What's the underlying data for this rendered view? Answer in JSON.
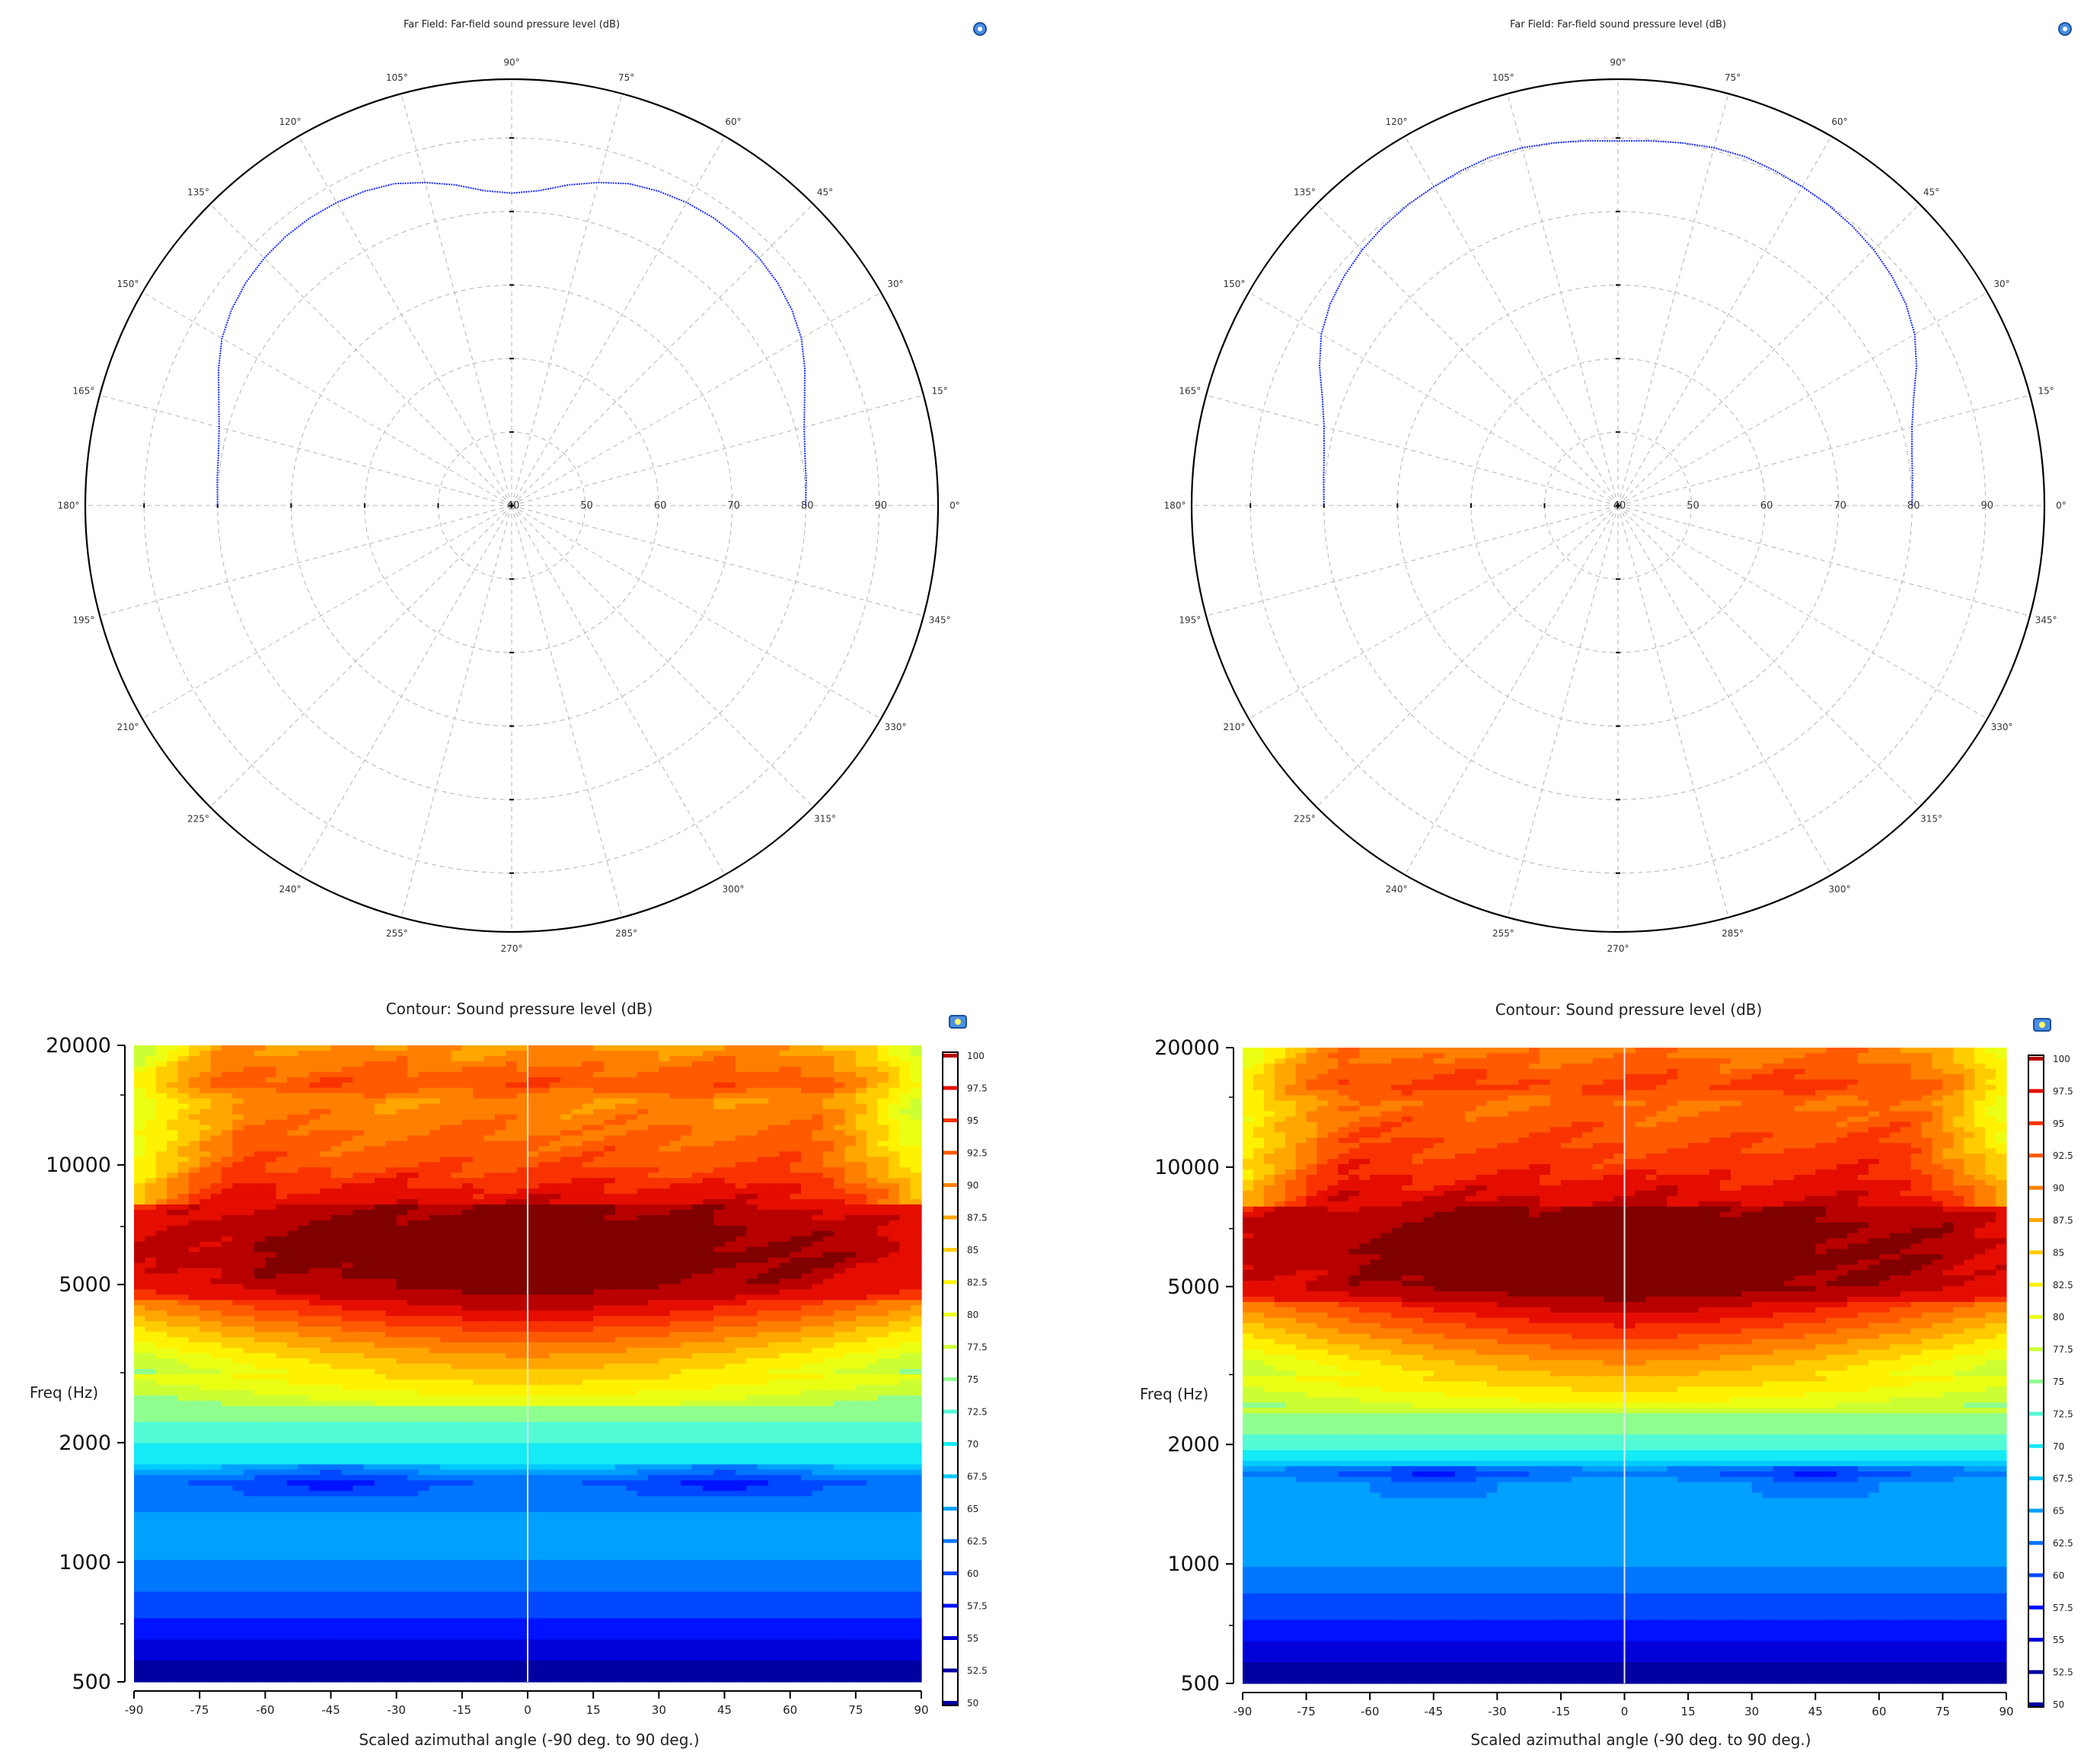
{
  "colors": {
    "polar_line": "#1a2cff",
    "frame": "#000000",
    "grid": "#b4b4b4",
    "sweep_line": "#e6e6e6",
    "contour_stops": [
      "#0000a0",
      "#0000ff",
      "#005aff",
      "#00a0ff",
      "#00e6ff",
      "#66ffcc",
      "#ccff33",
      "#ffff00",
      "#ffbf00",
      "#ff8000",
      "#ff4000",
      "#dd0000",
      "#800000"
    ]
  },
  "charts": {
    "polar_left": {
      "title": "Far Field: Far-field sound pressure level (dB)",
      "icon": "legend-toggle-icon"
    },
    "polar_right": {
      "title": "Far Field: Far-field sound pressure level (dB)",
      "icon": "legend-toggle-icon"
    },
    "contour_left": {
      "title": "Contour: Sound pressure level (dB)",
      "ylabel": "Freq (Hz)",
      "xlabel": "Scaled azimuthal angle (-90 deg. to 90 deg.)",
      "icon": "legend-toggle-icon"
    },
    "contour_right": {
      "title": "Contour: Sound pressure level (dB)",
      "ylabel": "Freq (Hz)",
      "xlabel": "Scaled azimuthal angle (-90 deg. to 90 deg.)",
      "icon": "legend-toggle-icon"
    }
  },
  "chart_data": [
    {
      "type": "line",
      "subtype": "polar",
      "title": "Far Field: Far-field sound pressure level (dB)",
      "angle_ticks": [
        "0°",
        "15°",
        "30°",
        "45°",
        "60°",
        "75°",
        "90°",
        "105°",
        "120°",
        "135°",
        "150°",
        "165°",
        "180°",
        "195°",
        "210°",
        "225°",
        "240°",
        "255°",
        "270°",
        "285°",
        "300°",
        "315°",
        "330°",
        "345°"
      ],
      "radial_ticks": [
        40,
        50,
        60,
        70,
        80,
        90
      ],
      "rlim": [
        40,
        98
      ],
      "grid": true,
      "series": [
        {
          "theta_deg": [
            0,
            5,
            10,
            15,
            20,
            25,
            30,
            35,
            40,
            45,
            50,
            55,
            60,
            65,
            70,
            75,
            80,
            85,
            90,
            95,
            100,
            105,
            110,
            115,
            120,
            125,
            130,
            135,
            140,
            145,
            150,
            155,
            160,
            165,
            170,
            175,
            180
          ],
          "r_db": [
            80.0,
            80.2,
            80.5,
            81.2,
            82.4,
            84.0,
            85.5,
            86.5,
            87.2,
            87.6,
            87.8,
            87.8,
            87.6,
            87.2,
            86.6,
            85.5,
            84.3,
            83.0,
            82.5,
            83.0,
            84.3,
            85.5,
            86.6,
            87.2,
            87.6,
            87.8,
            87.8,
            87.6,
            87.2,
            86.5,
            85.5,
            84.0,
            82.4,
            81.2,
            80.5,
            80.2,
            80.0
          ]
        }
      ]
    },
    {
      "type": "line",
      "subtype": "polar",
      "title": "Far Field: Far-field sound pressure level (dB)",
      "angle_ticks": [
        "0°",
        "15°",
        "30°",
        "45°",
        "60°",
        "75°",
        "90°",
        "105°",
        "120°",
        "135°",
        "150°",
        "165°",
        "180°",
        "195°",
        "210°",
        "225°",
        "240°",
        "255°",
        "270°",
        "285°",
        "300°",
        "315°",
        "330°",
        "345°"
      ],
      "radial_ticks": [
        40,
        50,
        60,
        70,
        80,
        90
      ],
      "rlim": [
        40,
        98
      ],
      "grid": true,
      "series": [
        {
          "theta_deg": [
            0,
            5,
            10,
            15,
            20,
            25,
            30,
            35,
            40,
            45,
            50,
            55,
            60,
            65,
            70,
            75,
            80,
            85,
            90,
            95,
            100,
            105,
            110,
            115,
            120,
            125,
            130,
            135,
            140,
            145,
            150,
            155,
            160,
            165,
            170,
            175,
            180
          ],
          "r_db": [
            80.0,
            80.2,
            80.6,
            81.4,
            82.8,
            84.8,
            86.6,
            87.8,
            88.6,
            89.2,
            89.6,
            89.9,
            90.1,
            90.3,
            90.5,
            90.4,
            90.1,
            89.8,
            89.6,
            89.8,
            90.1,
            90.4,
            90.5,
            90.3,
            90.1,
            89.9,
            89.6,
            89.2,
            88.6,
            87.8,
            86.6,
            84.8,
            82.8,
            81.4,
            80.6,
            80.2,
            80.0
          ]
        }
      ]
    },
    {
      "type": "heatmap",
      "subtype": "contour",
      "title": "Contour: Sound pressure level (dB)",
      "xlabel": "Scaled azimuthal angle (-90 deg. to 90 deg.)",
      "ylabel": "Freq (Hz)",
      "x_ticks": [
        -90,
        -75,
        -60,
        -45,
        -30,
        -15,
        0,
        15,
        30,
        45,
        60,
        75,
        90
      ],
      "y_ticks": [
        500,
        1000,
        2000,
        5000,
        10000,
        20000
      ],
      "y_scale": "log",
      "xlim": [
        -90,
        90
      ],
      "ylim": [
        500,
        20000
      ],
      "levels": [
        50,
        52.5,
        55,
        57.5,
        60,
        62.5,
        65,
        67.5,
        70,
        72.5,
        75,
        77.5,
        80,
        82.5,
        85,
        87.5,
        90,
        92.5,
        95,
        97.5,
        100
      ],
      "level_labels": [
        "100",
        "97.5",
        "95",
        "92.5",
        "90",
        "87.5",
        "85",
        "82.5",
        "80",
        "77.5",
        "75",
        "72.5",
        "70",
        "67.5",
        "65",
        "62.5",
        "60",
        "57.5",
        "55",
        "52.5",
        "50"
      ],
      "profile_freq_hz": [
        500,
        600,
        750,
        900,
        1000,
        1200,
        1400,
        1600,
        1800,
        2000,
        2400,
        2800,
        3300,
        3800,
        4400,
        5000,
        5800,
        7000,
        8500,
        10000,
        12000,
        14500,
        16000,
        20000
      ],
      "profile_level_db": [
        50,
        54,
        58,
        61,
        62.5,
        64,
        62,
        60,
        68,
        70,
        74,
        79,
        84,
        89,
        95,
        98,
        100,
        99,
        96,
        92,
        90,
        88,
        92,
        87
      ],
      "center_shift_db_at": {
        "3800": 6,
        "4400": 4,
        "5000": 2
      },
      "edge_cool_regions": [
        "-90 to -75 deg above 10000 Hz",
        "75 to 90 deg above 10000 Hz"
      ]
    },
    {
      "type": "heatmap",
      "subtype": "contour",
      "title": "Contour: Sound pressure level (dB)",
      "xlabel": "Scaled azimuthal angle (-90 deg. to 90 deg.)",
      "ylabel": "Freq (Hz)",
      "x_ticks": [
        -90,
        -75,
        -60,
        -45,
        -30,
        -15,
        0,
        15,
        30,
        45,
        60,
        75,
        90
      ],
      "y_ticks": [
        500,
        1000,
        2000,
        5000,
        10000,
        20000
      ],
      "y_scale": "log",
      "xlim": [
        -90,
        90
      ],
      "ylim": [
        500,
        20000
      ],
      "levels": [
        50,
        52.5,
        55,
        57.5,
        60,
        62.5,
        65,
        67.5,
        70,
        72.5,
        75,
        77.5,
        80,
        82.5,
        85,
        87.5,
        90,
        92.5,
        95,
        97.5,
        100
      ],
      "level_labels": [
        "100",
        "97.5",
        "95",
        "92.5",
        "90",
        "87.5",
        "85",
        "82.5",
        "80",
        "77.5",
        "75",
        "72.5",
        "70",
        "67.5",
        "65",
        "62.5",
        "60",
        "57.5",
        "55",
        "52.5",
        "50"
      ],
      "profile_freq_hz": [
        500,
        600,
        750,
        900,
        1000,
        1200,
        1400,
        1600,
        1700,
        1800,
        2000,
        2400,
        2800,
        3300,
        3800,
        4400,
        5000,
        5800,
        7000,
        8500,
        10000,
        12000,
        14500,
        16000,
        20000
      ],
      "profile_level_db": [
        50,
        54,
        58,
        61,
        63,
        64.5,
        65,
        64,
        60,
        67,
        71,
        75,
        80,
        85,
        90,
        95,
        99,
        100,
        100,
        97,
        94,
        92,
        90,
        93,
        89
      ],
      "center_shift_db_at": {
        "3800": 7,
        "4400": 4,
        "5000": 1
      },
      "edge_cool_regions": [
        "-90 to -75 deg above 10000 Hz",
        "75 to 90 deg above 10000 Hz"
      ]
    }
  ]
}
